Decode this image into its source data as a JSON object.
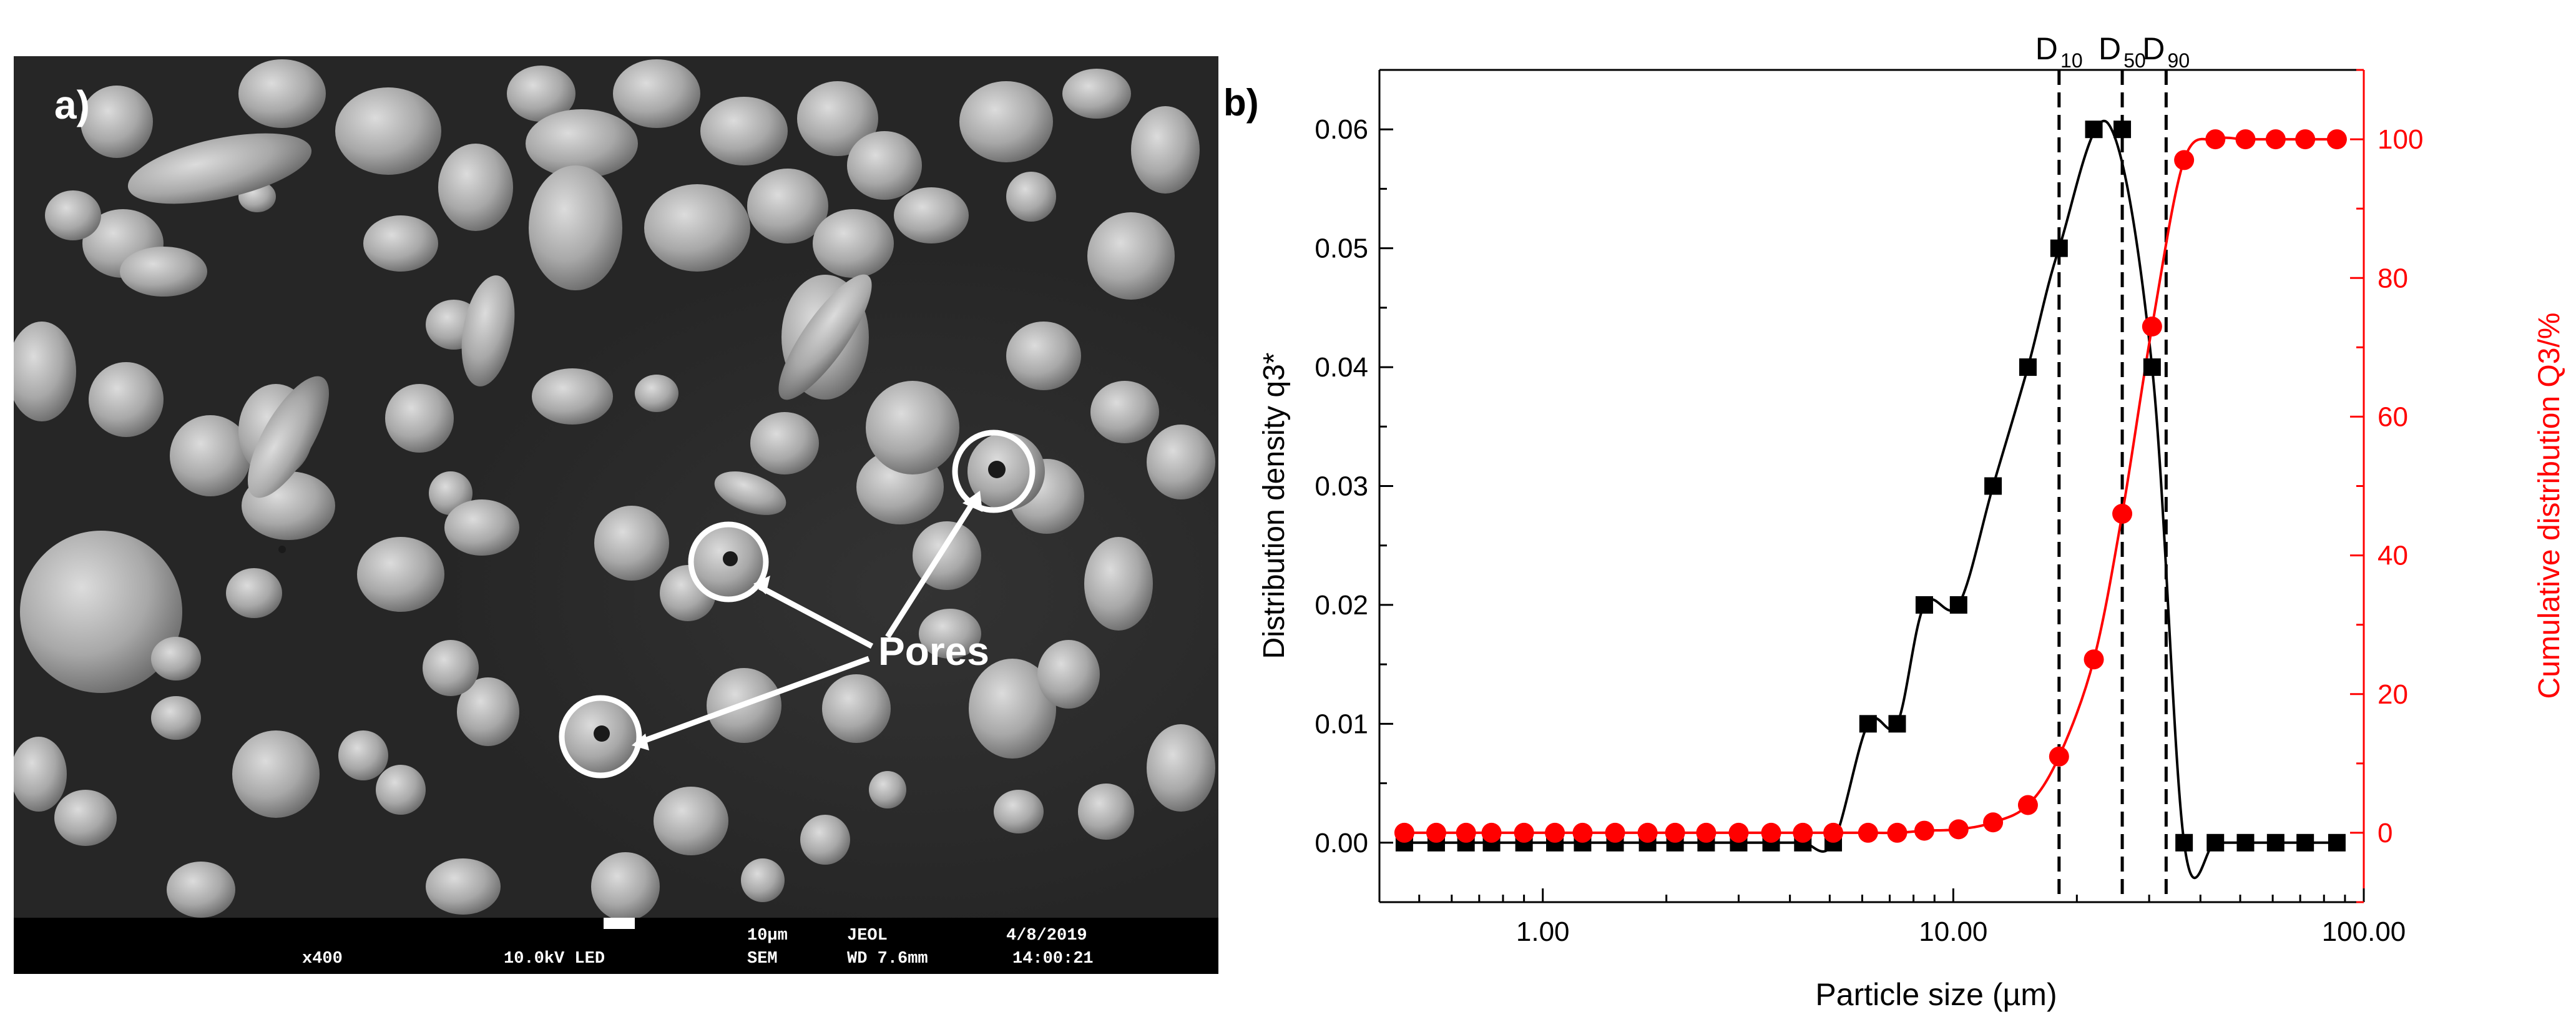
{
  "panel_a": {
    "label": "a)",
    "annotation": "Pores",
    "info_bar": {
      "magnification": "x400",
      "voltage_mode": "10.0kV LED",
      "scale": "10µm",
      "maker": "JEOL",
      "detector": "SEM",
      "working_distance": "WD 7.6mm",
      "date": "4/8/2019",
      "time": "14:00:21"
    }
  },
  "panel_b": {
    "label": "b)",
    "markers": [
      "D",
      "D",
      "D"
    ],
    "marker_subs": [
      "10",
      "50",
      "90"
    ],
    "marker_x": [
      18.1,
      25.8,
      33.0
    ]
  },
  "chart_data": {
    "type": "scatter",
    "xlabel": "Particle size (µm)",
    "ylabel_left": "Distribution density q3*",
    "ylabel_right": "Cumulative distribution Q3/%",
    "xscale": "log",
    "xlim": [
      0.4,
      100
    ],
    "ylim_left": [
      -0.005,
      0.065
    ],
    "ylim_right": [
      -10,
      110
    ],
    "x_ticks": [
      "1.00",
      "10.00",
      "100.00"
    ],
    "y_ticks_left": [
      "0.00",
      "0.01",
      "0.02",
      "0.03",
      "0.04",
      "0.05",
      "0.06"
    ],
    "y_ticks_right": [
      "0",
      "20",
      "40",
      "60",
      "80",
      "100"
    ],
    "colors": {
      "density": "#000000",
      "cumulative": "#ff0000"
    },
    "series": [
      {
        "axis": "left",
        "marker": "square",
        "x": [
          0.46,
          0.55,
          0.65,
          0.75,
          0.9,
          1.07,
          1.25,
          1.5,
          1.8,
          2.1,
          2.5,
          3.0,
          3.6,
          4.3,
          5.1,
          6.2,
          7.3,
          8.5,
          10.3,
          12.5,
          15.2,
          18.1,
          22.0,
          25.8,
          30.5,
          36.5,
          43.5,
          51.5,
          61.0,
          72.0,
          86.0
        ],
        "y": [
          0,
          0,
          0,
          0,
          0,
          0,
          0,
          0,
          0,
          0,
          0,
          0,
          0,
          0,
          0,
          0.01,
          0.01,
          0.02,
          0.02,
          0.03,
          0.04,
          0.05,
          0.06,
          0.06,
          0.04,
          0,
          0,
          0,
          0,
          0,
          0
        ]
      },
      {
        "axis": "right",
        "marker": "circle",
        "x": [
          0.46,
          0.55,
          0.65,
          0.75,
          0.9,
          1.07,
          1.25,
          1.5,
          1.8,
          2.1,
          2.5,
          3.0,
          3.6,
          4.3,
          5.1,
          6.2,
          7.3,
          8.5,
          10.3,
          12.5,
          15.2,
          18.1,
          22.0,
          25.8,
          30.5,
          36.5,
          43.5,
          51.5,
          61.0,
          72.0,
          86.0
        ],
        "y": [
          0,
          0,
          0,
          0,
          0,
          0,
          0,
          0,
          0,
          0,
          0,
          0,
          0,
          0,
          0,
          0,
          0,
          0.3,
          0.5,
          1.5,
          4,
          11,
          25,
          46,
          73,
          97,
          100,
          100,
          100,
          100,
          100
        ]
      }
    ]
  }
}
